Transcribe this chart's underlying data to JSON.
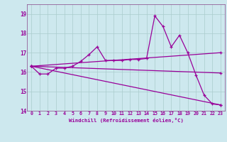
{
  "xlabel": "Windchill (Refroidissement éolien,°C)",
  "bg_color": "#cde8ee",
  "grid_color": "#aacccc",
  "line_color": "#990099",
  "spine_color": "#884488",
  "xlim": [
    -0.5,
    23.5
  ],
  "ylim": [
    14.0,
    19.5
  ],
  "yticks": [
    14,
    15,
    16,
    17,
    18,
    19
  ],
  "xticks": [
    0,
    1,
    2,
    3,
    4,
    5,
    6,
    7,
    8,
    9,
    10,
    11,
    12,
    13,
    14,
    15,
    16,
    17,
    18,
    19,
    20,
    21,
    22,
    23
  ],
  "series1_x": [
    0,
    1,
    2,
    3,
    4,
    5,
    6,
    7,
    8,
    9,
    10,
    11,
    12,
    13,
    14,
    15,
    16,
    17,
    18,
    19,
    20,
    21,
    22,
    23
  ],
  "series1_y": [
    16.3,
    15.9,
    15.9,
    16.2,
    16.2,
    16.3,
    16.55,
    16.9,
    17.3,
    16.6,
    16.6,
    16.6,
    16.65,
    16.65,
    16.7,
    18.9,
    18.35,
    17.3,
    17.9,
    17.0,
    15.85,
    14.8,
    14.35,
    14.3
  ],
  "series2_x": [
    0,
    23
  ],
  "series2_y": [
    16.3,
    14.3
  ],
  "series3_x": [
    0,
    23
  ],
  "series3_y": [
    16.3,
    17.0
  ],
  "series4_x": [
    0,
    23
  ],
  "series4_y": [
    16.3,
    15.95
  ]
}
